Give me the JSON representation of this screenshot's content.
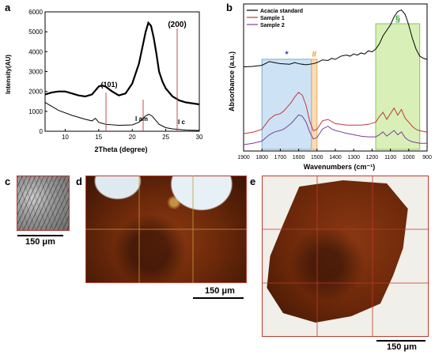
{
  "panels": {
    "a": "a",
    "b": "b",
    "c": "c",
    "d": "d",
    "e": "e"
  },
  "chart_data": [
    {
      "type": "line",
      "panel": "a",
      "xlabel": "2Theta (degree)",
      "ylabel": "Intensity(AU)",
      "xlim": [
        7,
        30
      ],
      "ylim": [
        0,
        6000
      ],
      "xticks": [
        "10",
        "15",
        "20",
        "25",
        "30"
      ],
      "yticks": [
        "0",
        "1000",
        "2000",
        "3000",
        "4000",
        "5000",
        "6000"
      ],
      "grid": false,
      "series": [
        {
          "values_x": [
            7,
            8,
            9,
            10,
            11,
            12,
            13,
            14,
            14.5,
            15,
            15.5,
            16,
            17,
            18,
            19,
            20,
            21,
            21.5,
            22,
            22.4,
            22.8,
            23.2,
            23.6,
            24,
            24.5,
            25,
            26,
            27,
            28,
            29,
            30
          ],
          "values_y": [
            1850,
            1950,
            2000,
            2000,
            1900,
            1800,
            1750,
            1850,
            2050,
            2250,
            2300,
            2250,
            2000,
            1800,
            1900,
            2400,
            3400,
            4200,
            5000,
            5450,
            5300,
            4700,
            3900,
            3000,
            2500,
            2150,
            1750,
            1550,
            1450,
            1400,
            1350
          ]
        },
        {
          "values_x": [
            7,
            9,
            11,
            13,
            14,
            14.5,
            15,
            16,
            18,
            20,
            21,
            21.5,
            22,
            22.5,
            23,
            23.5,
            24,
            25,
            26,
            28,
            30
          ],
          "values_y": [
            1450,
            1050,
            800,
            600,
            520,
            650,
            450,
            350,
            300,
            320,
            450,
            600,
            780,
            850,
            750,
            550,
            350,
            180,
            120,
            60,
            40
          ]
        }
      ],
      "annotations": [
        "(200)",
        "(101)",
        "I am",
        "I c"
      ]
    },
    {
      "type": "line",
      "panel": "b",
      "xlabel": "Wavenumbers (cm⁻¹)",
      "ylabel": "Absorbance (a.u.)",
      "xlim": [
        1900,
        900
      ],
      "xticks": [
        "1900",
        "1800",
        "1700",
        "1600",
        "1500",
        "1400",
        "1300",
        "1200",
        "1100",
        "1000",
        "900"
      ],
      "legend": "top-left",
      "series": [
        {
          "name": "Acacia standard",
          "color": "#000000",
          "x": [
            1900,
            1850,
            1800,
            1760,
            1730,
            1700,
            1650,
            1620,
            1600,
            1560,
            1520,
            1500,
            1470,
            1440,
            1420,
            1400,
            1370,
            1340,
            1320,
            1300,
            1280,
            1260,
            1240,
            1220,
            1200,
            1180,
            1160,
            1140,
            1120,
            1100,
            1080,
            1060,
            1040,
            1020,
            1000,
            980,
            960,
            940,
            920,
            900
          ],
          "y": [
            0.52,
            0.53,
            0.55,
            0.62,
            0.6,
            0.58,
            0.57,
            0.6,
            0.58,
            0.56,
            0.58,
            0.6,
            0.65,
            0.64,
            0.68,
            0.66,
            0.72,
            0.74,
            0.72,
            0.76,
            0.74,
            0.78,
            0.76,
            0.82,
            0.8,
            0.85,
            0.95,
            1.1,
            1.2,
            1.3,
            1.45,
            1.55,
            1.58,
            1.5,
            1.3,
            1.05,
            0.85,
            0.72,
            0.68,
            0.66
          ]
        },
        {
          "name": "Sample 1",
          "color": "#c0393b",
          "x": [
            1900,
            1850,
            1800,
            1760,
            1730,
            1700,
            1680,
            1660,
            1640,
            1620,
            1600,
            1580,
            1560,
            1540,
            1520,
            1500,
            1470,
            1440,
            1420,
            1400,
            1370,
            1340,
            1300,
            1260,
            1220,
            1180,
            1160,
            1140,
            1120,
            1100,
            1080,
            1060,
            1040,
            1020,
            1000,
            980,
            960,
            940,
            920,
            900
          ],
          "y": [
            0.1,
            0.12,
            0.16,
            0.3,
            0.36,
            0.38,
            0.42,
            0.48,
            0.54,
            0.62,
            0.68,
            0.64,
            0.5,
            0.28,
            0.14,
            0.16,
            0.28,
            0.3,
            0.27,
            0.24,
            0.23,
            0.22,
            0.22,
            0.22,
            0.23,
            0.26,
            0.34,
            0.4,
            0.3,
            0.38,
            0.46,
            0.36,
            0.44,
            0.32,
            0.26,
            0.2,
            0.16,
            0.14,
            0.13,
            0.12
          ]
        },
        {
          "name": "Sample 2",
          "color": "#7e3d9b",
          "x": [
            1900,
            1850,
            1800,
            1760,
            1730,
            1700,
            1680,
            1660,
            1640,
            1620,
            1600,
            1580,
            1560,
            1540,
            1520,
            1500,
            1470,
            1440,
            1420,
            1400,
            1370,
            1340,
            1300,
            1260,
            1220,
            1180,
            1160,
            1140,
            1120,
            1100,
            1080,
            1060,
            1040,
            1020,
            1000,
            980,
            960,
            940,
            920,
            900
          ],
          "y": [
            0.0,
            0.02,
            0.05,
            0.14,
            0.18,
            0.2,
            0.22,
            0.26,
            0.3,
            0.36,
            0.42,
            0.4,
            0.32,
            0.18,
            0.08,
            0.1,
            0.22,
            0.26,
            0.22,
            0.2,
            0.18,
            0.16,
            0.14,
            0.12,
            0.11,
            0.11,
            0.14,
            0.18,
            0.12,
            0.16,
            0.2,
            0.14,
            0.18,
            0.1,
            0.06,
            0.04,
            0.03,
            0.02,
            0.02,
            0.02
          ]
        }
      ],
      "regions": [
        {
          "label": "*",
          "from": 1800,
          "to": 1530,
          "color": "#cde3f5",
          "border": "#7aa8cf",
          "label_color": "#3b3bb5"
        },
        {
          "label": "#",
          "from": 1530,
          "to": 1500,
          "color": "#f7dcb6",
          "border": "#e8a95b",
          "label_color": "#e8a030"
        },
        {
          "label": "§",
          "from": 1180,
          "to": 940,
          "color": "#d8f0b8",
          "border": "#8ac44f",
          "label_color": "#3aa03a"
        }
      ]
    }
  ],
  "micrographs": {
    "c": {
      "scale_label": "150 μm"
    },
    "d": {
      "scale_label": "150 μm"
    },
    "e": {
      "scale_label": "150 μm"
    }
  }
}
